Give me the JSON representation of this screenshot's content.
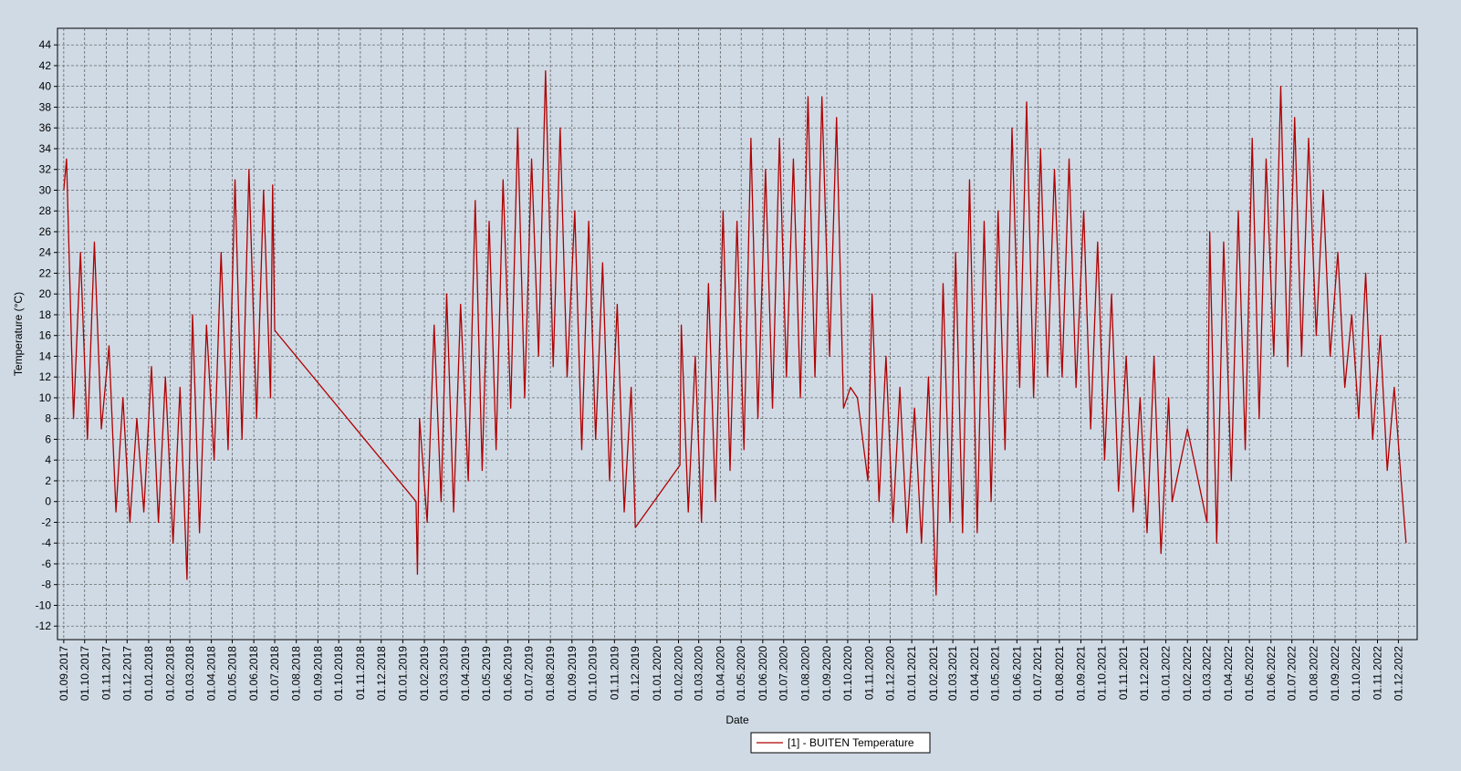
{
  "chart_data": {
    "type": "line",
    "xlabel": "Date",
    "ylabel": "Temperature (°C)",
    "xlim": [
      "23.08.2017",
      "28.12.2022"
    ],
    "ylim": [
      -13.3,
      45.6
    ],
    "yticks": [
      -12,
      -10,
      -8,
      -6,
      -4,
      -2,
      0,
      2,
      4,
      6,
      8,
      10,
      12,
      14,
      16,
      18,
      20,
      22,
      24,
      26,
      28,
      30,
      32,
      34,
      36,
      38,
      40,
      42,
      44
    ],
    "xticks": [
      "01.09.2017",
      "01.10.2017",
      "01.11.2017",
      "01.12.2017",
      "01.01.2018",
      "01.02.2018",
      "01.03.2018",
      "01.04.2018",
      "01.05.2018",
      "01.06.2018",
      "01.07.2018",
      "01.08.2018",
      "01.09.2018",
      "01.10.2018",
      "01.11.2018",
      "01.12.2018",
      "01.01.2019",
      "01.02.2019",
      "01.03.2019",
      "01.04.2019",
      "01.05.2019",
      "01.06.2019",
      "01.07.2019",
      "01.08.2019",
      "01.09.2019",
      "01.10.2019",
      "01.11.2019",
      "01.12.2019",
      "01.01.2020",
      "01.02.2020",
      "01.03.2020",
      "01.04.2020",
      "01.05.2020",
      "01.06.2020",
      "01.07.2020",
      "01.08.2020",
      "01.09.2020",
      "01.10.2020",
      "01.11.2020",
      "01.12.2020",
      "01.01.2021",
      "01.02.2021",
      "01.03.2021",
      "01.04.2021",
      "01.05.2021",
      "01.06.2021",
      "01.07.2021",
      "01.08.2021",
      "01.09.2021",
      "01.10.2021",
      "01.11.2021",
      "01.12.2021",
      "01.01.2022",
      "01.02.2022",
      "01.03.2022",
      "01.04.2022",
      "01.05.2022",
      "01.06.2022",
      "01.07.2022",
      "01.08.2022",
      "01.09.2022",
      "01.10.2022",
      "01.11.2022",
      "01.12.2022"
    ],
    "grid": true,
    "legend": "bottom",
    "series": [
      {
        "name": "[1] - BUITEN Temperature",
        "color": "#b00000",
        "x": [
          "01.09.2017",
          "05.09.2017",
          "15.09.2017",
          "25.09.2017",
          "05.10.2017",
          "15.10.2017",
          "25.10.2017",
          "05.11.2017",
          "15.11.2017",
          "25.11.2017",
          "05.12.2017",
          "15.12.2017",
          "25.12.2017",
          "05.01.2018",
          "15.01.2018",
          "25.01.2018",
          "05.02.2018",
          "15.02.2018",
          "25.02.2018",
          "05.03.2018",
          "15.03.2018",
          "25.03.2018",
          "05.04.2018",
          "15.04.2018",
          "25.04.2018",
          "05.05.2018",
          "15.05.2018",
          "25.05.2018",
          "05.06.2018",
          "15.06.2018",
          "25.06.2018",
          "28.06.2018",
          "01.07.2018",
          "20.01.2019",
          "22.01.2019",
          "25.01.2019",
          "05.02.2019",
          "15.02.2019",
          "25.02.2019",
          "05.03.2019",
          "15.03.2019",
          "25.03.2019",
          "05.04.2019",
          "15.04.2019",
          "25.04.2019",
          "05.05.2019",
          "15.05.2019",
          "25.05.2019",
          "05.06.2019",
          "15.06.2019",
          "25.06.2019",
          "05.07.2019",
          "15.07.2019",
          "25.07.2019",
          "05.08.2019",
          "15.08.2019",
          "25.08.2019",
          "05.09.2019",
          "15.09.2019",
          "25.09.2019",
          "05.10.2019",
          "15.10.2019",
          "25.10.2019",
          "05.11.2019",
          "15.11.2019",
          "25.11.2019",
          "01.12.2019",
          "03.02.2020",
          "05.02.2020",
          "15.02.2020",
          "25.02.2020",
          "05.03.2020",
          "15.03.2020",
          "25.03.2020",
          "05.04.2020",
          "15.04.2020",
          "25.04.2020",
          "05.05.2020",
          "15.05.2020",
          "25.05.2020",
          "05.06.2020",
          "15.06.2020",
          "25.06.2020",
          "05.07.2020",
          "15.07.2020",
          "25.07.2020",
          "05.08.2020",
          "15.08.2020",
          "25.08.2020",
          "05.09.2020",
          "15.09.2020",
          "25.09.2020",
          "05.10.2020",
          "15.10.2020",
          "30.10.2020",
          "05.11.2020",
          "15.11.2020",
          "25.11.2020",
          "05.12.2020",
          "15.12.2020",
          "25.12.2020",
          "05.01.2021",
          "15.01.2021",
          "25.01.2021",
          "05.02.2021",
          "15.02.2021",
          "25.02.2021",
          "05.03.2021",
          "15.03.2021",
          "25.03.2021",
          "05.04.2021",
          "15.04.2021",
          "25.04.2021",
          "05.05.2021",
          "15.05.2021",
          "25.05.2021",
          "05.06.2021",
          "15.06.2021",
          "25.06.2021",
          "05.07.2021",
          "15.07.2021",
          "25.07.2021",
          "05.08.2021",
          "15.08.2021",
          "25.08.2021",
          "05.09.2021",
          "15.09.2021",
          "25.09.2021",
          "05.10.2021",
          "15.10.2021",
          "25.10.2021",
          "05.11.2021",
          "15.11.2021",
          "25.11.2021",
          "05.12.2021",
          "15.12.2021",
          "25.12.2021",
          "05.01.2022",
          "10.01.2022",
          "01.02.2022",
          "01.03.2022",
          "05.03.2022",
          "15.03.2022",
          "25.03.2022",
          "05.04.2022",
          "15.04.2022",
          "25.04.2022",
          "05.05.2022",
          "15.05.2022",
          "25.05.2022",
          "05.06.2022",
          "15.06.2022",
          "25.06.2022",
          "05.07.2022",
          "15.07.2022",
          "25.07.2022",
          "05.08.2022",
          "15.08.2022",
          "25.08.2022",
          "05.09.2022",
          "15.09.2022",
          "25.09.2022",
          "05.10.2022",
          "15.10.2022",
          "25.10.2022",
          "05.11.2022",
          "15.11.2022",
          "25.11.2022",
          "05.12.2022",
          "12.12.2022"
        ],
        "values": [
          30,
          33,
          8,
          24,
          6,
          25,
          7,
          15,
          -1,
          10,
          -2,
          8,
          -1,
          13,
          -2,
          12,
          -4,
          11,
          -7.5,
          18,
          -3,
          17,
          4,
          24,
          5,
          31,
          6,
          32,
          8,
          30,
          10,
          30.5,
          16.5,
          0,
          -7,
          8,
          -2,
          17,
          0,
          20,
          -1,
          19,
          2,
          29,
          3,
          27,
          5,
          31,
          9,
          36,
          10,
          33,
          14,
          41.5,
          13,
          36,
          12,
          28,
          5,
          27,
          6,
          23,
          2,
          19,
          -1,
          11,
          -2.5,
          3.5,
          17,
          -1,
          14,
          -2,
          21,
          0,
          28,
          3,
          27,
          5,
          35,
          8,
          32,
          9,
          35,
          12,
          33,
          10,
          39,
          12,
          39,
          14,
          37,
          9,
          11,
          10,
          2,
          20,
          0,
          14,
          -2,
          11,
          -3,
          9,
          -4,
          12,
          -9,
          21,
          -2,
          24,
          -3,
          31,
          -3,
          27,
          0,
          28,
          5,
          36,
          11,
          38.5,
          10,
          34,
          12,
          32,
          12,
          33,
          11,
          28,
          7,
          25,
          4,
          20,
          1,
          14,
          -1,
          10,
          -3,
          14,
          -5,
          10,
          0,
          7,
          -2,
          26,
          -4,
          25,
          2,
          28,
          5,
          35,
          8,
          33,
          14,
          40,
          13,
          37,
          14,
          35,
          16,
          30,
          14,
          24,
          11,
          18,
          8,
          22,
          6,
          16,
          3,
          11,
          2,
          -4
        ]
      }
    ]
  }
}
